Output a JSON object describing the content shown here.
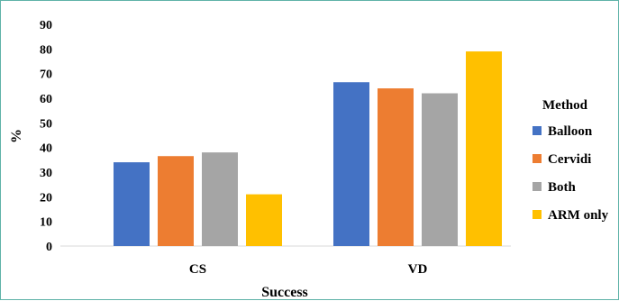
{
  "chart_data": {
    "type": "bar",
    "title": "",
    "xlabel": "Success",
    "ylabel": "%",
    "ylim": [
      0,
      90
    ],
    "yticks": [
      0,
      10,
      20,
      30,
      40,
      50,
      60,
      70,
      80,
      90
    ],
    "grid": false,
    "categories": [
      "CS",
      "VD"
    ],
    "legend": {
      "title": "Method",
      "position": "right"
    },
    "series": [
      {
        "name": "Balloon",
        "color": "#4472c4",
        "values": [
          34,
          66.5
        ]
      },
      {
        "name": "Cervidi",
        "color": "#ed7d31",
        "values": [
          36.5,
          64
        ]
      },
      {
        "name": "Both",
        "color": "#a5a5a5",
        "values": [
          38,
          62
        ]
      },
      {
        "name": "ARM only",
        "color": "#ffc000",
        "values": [
          21,
          79
        ]
      }
    ]
  }
}
